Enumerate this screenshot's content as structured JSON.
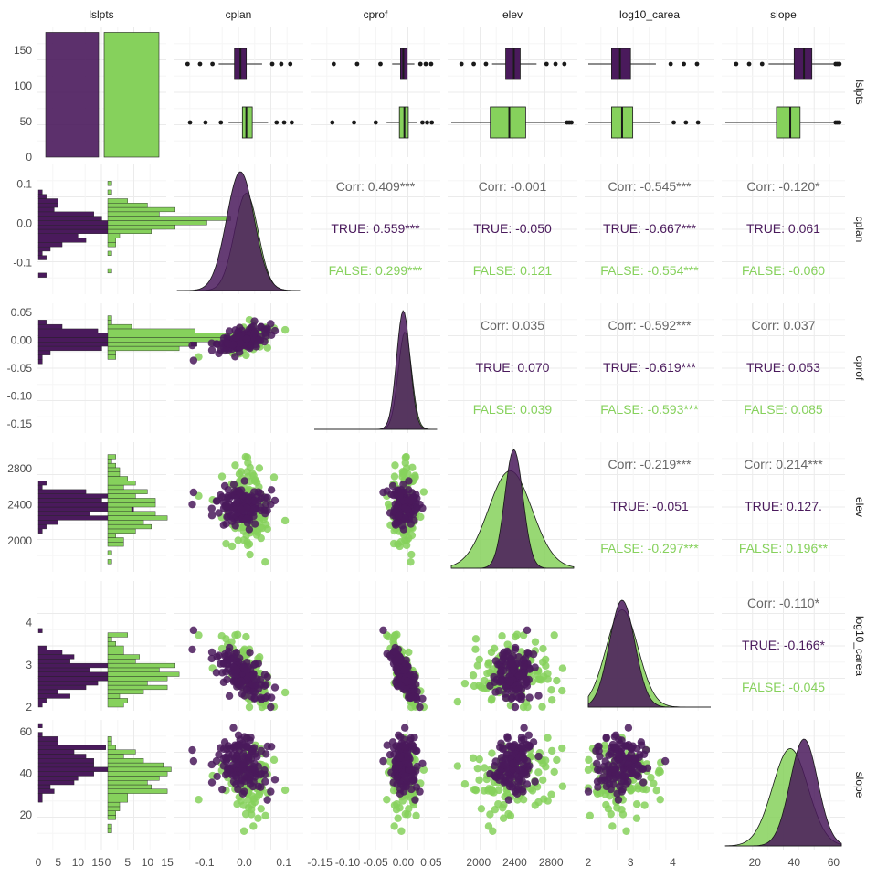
{
  "colors": {
    "true": "#4a1a5c",
    "false": "#86d15c",
    "corr": "#666666",
    "grid": "#ebebeb",
    "grid_minor": "#f5f5f5"
  },
  "chart_data": {
    "type": "scatter",
    "variables": [
      "lslpts",
      "cplan",
      "cprof",
      "elev",
      "log10_carea",
      "slope"
    ],
    "groups": [
      "TRUE",
      "FALSE"
    ],
    "lslpts_counts": {
      "TRUE": 175,
      "FALSE": 175
    },
    "ranges": {
      "cplan": [
        -0.17,
        0.14
      ],
      "cprof": [
        -0.16,
        0.06
      ],
      "elev": [
        1700,
        3050
      ],
      "log10_carea": [
        2.0,
        4.9
      ],
      "slope": [
        5,
        64
      ],
      "lslpts_count": [
        0,
        182
      ]
    },
    "ticks": {
      "cplan": {
        "x": [
          -0.1,
          0.0,
          0.1
        ],
        "xlab": [
          "-0.1",
          "0.0",
          "0.1"
        ],
        "y": [
          -0.1,
          0.0,
          0.1
        ],
        "ylab": [
          "-0.1",
          "0.0",
          "0.1"
        ]
      },
      "cprof": {
        "x": [
          -0.15,
          -0.1,
          -0.05,
          0.0,
          0.05
        ],
        "xlab": [
          "-0.15",
          "-0.10",
          "-0.05",
          "0.00",
          "0.05"
        ],
        "y": [
          -0.15,
          -0.1,
          -0.05,
          0.0,
          0.05
        ],
        "ylab": [
          "-0.15",
          "-0.10",
          "-0.05",
          "0.00",
          "0.05"
        ]
      },
      "elev": {
        "x": [
          2000,
          2400,
          2800
        ],
        "xlab": [
          "2000",
          "2400",
          "2800"
        ],
        "y": [
          2000,
          2400,
          2800
        ],
        "ylab": [
          "2000",
          "2400",
          "2800"
        ]
      },
      "log10_carea": {
        "x": [
          2,
          3,
          4
        ],
        "xlab": [
          "2",
          "3",
          "4"
        ],
        "y": [
          2,
          3,
          4
        ],
        "ylab": [
          "2",
          "3",
          "4"
        ]
      },
      "slope": {
        "x": [
          20,
          40,
          60
        ],
        "xlab": [
          "20",
          "40",
          "60"
        ],
        "y": [
          20,
          40,
          60
        ],
        "ylab": [
          "20",
          "40",
          "60"
        ]
      },
      "lslpts_y": {
        "y": [
          0,
          50,
          100,
          150
        ],
        "ylab": [
          "0",
          "50",
          "100",
          "150"
        ]
      },
      "hist_x": {
        "x": [
          0,
          5,
          10,
          15
        ],
        "xlab": [
          "0",
          "5",
          "10",
          "15"
        ]
      }
    },
    "distributions": {
      "cplan": {
        "TRUE": {
          "mean": -0.01,
          "sd": 0.035
        },
        "FALSE": {
          "mean": 0.005,
          "sd": 0.03
        }
      },
      "cprof": {
        "TRUE": {
          "mean": 0.0,
          "sd": 0.012
        },
        "FALSE": {
          "mean": 0.003,
          "sd": 0.012
        }
      },
      "elev": {
        "TRUE": {
          "mean": 2390,
          "sd": 100
        },
        "FALSE": {
          "mean": 2350,
          "sd": 240
        }
      },
      "log10_carea": {
        "TRUE": {
          "mean": 2.8,
          "sd": 0.3
        },
        "FALSE": {
          "mean": 2.8,
          "sd": 0.38
        }
      },
      "slope": {
        "TRUE": {
          "mean": 45,
          "sd": 7
        },
        "FALSE": {
          "mean": 38,
          "sd": 9
        }
      }
    },
    "boxplots": {
      "cplan": {
        "TRUE": {
          "q1": -0.025,
          "med": -0.01,
          "q3": 0.005,
          "wlo": -0.065,
          "whi": 0.045
        },
        "FALSE": {
          "q1": -0.005,
          "med": 0.005,
          "q3": 0.02,
          "wlo": -0.04,
          "whi": 0.06
        }
      },
      "cprof": {
        "TRUE": {
          "q1": -0.005,
          "med": 0.0,
          "q3": 0.007,
          "wlo": -0.02,
          "whi": 0.02
        },
        "FALSE": {
          "q1": -0.007,
          "med": 0.002,
          "q3": 0.009,
          "wlo": -0.03,
          "whi": 0.025
        }
      },
      "elev": {
        "TRUE": {
          "q1": 2300,
          "med": 2390,
          "q3": 2460,
          "wlo": 2150,
          "whi": 2640
        },
        "FALSE": {
          "q1": 2130,
          "med": 2340,
          "q3": 2520,
          "wlo": 1700,
          "whi": 2950
        }
      },
      "log10_carea": {
        "TRUE": {
          "q1": 2.55,
          "med": 2.75,
          "q3": 3.0,
          "wlo": 2.0,
          "whi": 3.6
        },
        "FALSE": {
          "q1": 2.55,
          "med": 2.8,
          "q3": 3.05,
          "wlo": 2.0,
          "whi": 3.7
        }
      },
      "slope": {
        "TRUE": {
          "q1": 40,
          "med": 45,
          "q3": 49,
          "wlo": 27,
          "whi": 60
        },
        "FALSE": {
          "q1": 31,
          "med": 38,
          "q3": 43,
          "wlo": 5,
          "whi": 60
        }
      }
    },
    "correlations": [
      {
        "row": "cplan",
        "col": "cprof",
        "corr": "Corr: 0.409***",
        "true": "TRUE: 0.559***",
        "false": "FALSE: 0.299***"
      },
      {
        "row": "cplan",
        "col": "elev",
        "corr": "Corr: -0.001",
        "true": "TRUE: -0.050",
        "false": "FALSE: 0.121"
      },
      {
        "row": "cplan",
        "col": "log10_carea",
        "corr": "Corr: -0.545***",
        "true": "TRUE: -0.667***",
        "false": "FALSE: -0.554***"
      },
      {
        "row": "cplan",
        "col": "slope",
        "corr": "Corr: -0.120*",
        "true": "TRUE: 0.061",
        "false": "FALSE: -0.060"
      },
      {
        "row": "cprof",
        "col": "elev",
        "corr": "Corr: 0.035",
        "true": "TRUE: 0.070",
        "false": "FALSE: 0.039"
      },
      {
        "row": "cprof",
        "col": "log10_carea",
        "corr": "Corr: -0.592***",
        "true": "TRUE: -0.619***",
        "false": "FALSE: -0.593***"
      },
      {
        "row": "cprof",
        "col": "slope",
        "corr": "Corr: 0.037",
        "true": "TRUE: 0.053",
        "false": "FALSE: 0.085"
      },
      {
        "row": "elev",
        "col": "log10_carea",
        "corr": "Corr: -0.219***",
        "true": "TRUE: -0.051",
        "false": "FALSE: -0.297***"
      },
      {
        "row": "elev",
        "col": "slope",
        "corr": "Corr: 0.214***",
        "true": "TRUE: 0.127.",
        "false": "FALSE: 0.196**"
      },
      {
        "row": "log10_carea",
        "col": "slope",
        "corr": "Corr: -0.110*",
        "true": "TRUE: -0.166*",
        "false": "FALSE: -0.045"
      }
    ]
  }
}
